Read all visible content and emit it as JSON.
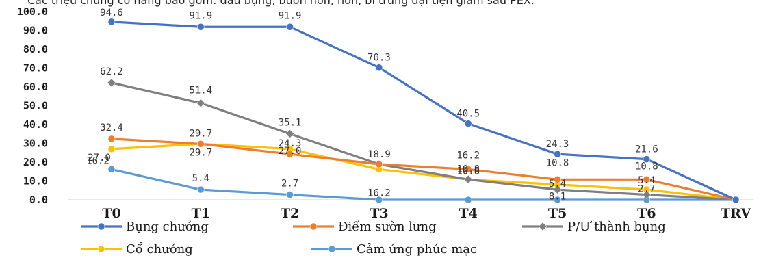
{
  "top_text": "Các triệu chứng cơ năng bao gồm: đau bụng, buồn nôn, nôn, bí trung đại tiện giảm sau PEX.",
  "chart_data": {
    "type": "line",
    "categories": [
      "T0",
      "T1",
      "T2",
      "T3",
      "T4",
      "T5",
      "T6",
      "TRV"
    ],
    "ylim": [
      0,
      100
    ],
    "yticks": [
      "0.0",
      "10.0",
      "20.0",
      "30.0",
      "40.0",
      "50.0",
      "60.0",
      "70.0",
      "80.0",
      "90.0",
      "100.0"
    ],
    "grid": false,
    "legend_position": "bottom",
    "series": [
      {
        "name": "Bụng chướng",
        "color": "#4472C4",
        "marker": "circle",
        "values": [
          94.6,
          91.9,
          91.9,
          70.3,
          40.5,
          24.3,
          21.6,
          0
        ],
        "labels": [
          "94.6",
          "91.9",
          "91.9",
          "70.3",
          "40.5",
          "24.3",
          "21.6",
          ""
        ]
      },
      {
        "name": "Điểm sườn lưng",
        "color": "#ED7D31",
        "marker": "circle",
        "values": [
          32.4,
          29.7,
          24.3,
          18.9,
          16.2,
          10.8,
          10.8,
          0
        ],
        "labels": [
          "32.4",
          "29.7",
          "24.3",
          "18.9",
          "16.2",
          "10.8",
          "10.8",
          ""
        ]
      },
      {
        "name": "P/Ư thành bụng",
        "color": "#7F7F7F",
        "marker": "diamond",
        "values": [
          62.2,
          51.4,
          35.1,
          18.9,
          10.8,
          5.4,
          2.7,
          0
        ],
        "labels": [
          "62.2",
          "51.4",
          "35.1",
          "",
          "10.8",
          "5.4",
          "2.7",
          ""
        ]
      },
      {
        "name": "Cổ chướng",
        "color": "#FFC000",
        "marker": "circle",
        "values": [
          27.0,
          29.7,
          27.0,
          16.2,
          10.8,
          8.1,
          5.4,
          0
        ],
        "labels": [
          "27.0",
          "29.7",
          "27.0",
          "16.2",
          "10.8",
          "8.1",
          "5.4",
          ""
        ]
      },
      {
        "name": "Cảm ứng phúc mạc",
        "color": "#5B9BD5",
        "marker": "circle",
        "values": [
          16.2,
          5.4,
          2.7,
          0,
          0,
          0,
          0,
          0
        ],
        "labels": [
          "16.2",
          "5.4",
          "2.7",
          "",
          "",
          "",
          "",
          ""
        ]
      }
    ]
  }
}
